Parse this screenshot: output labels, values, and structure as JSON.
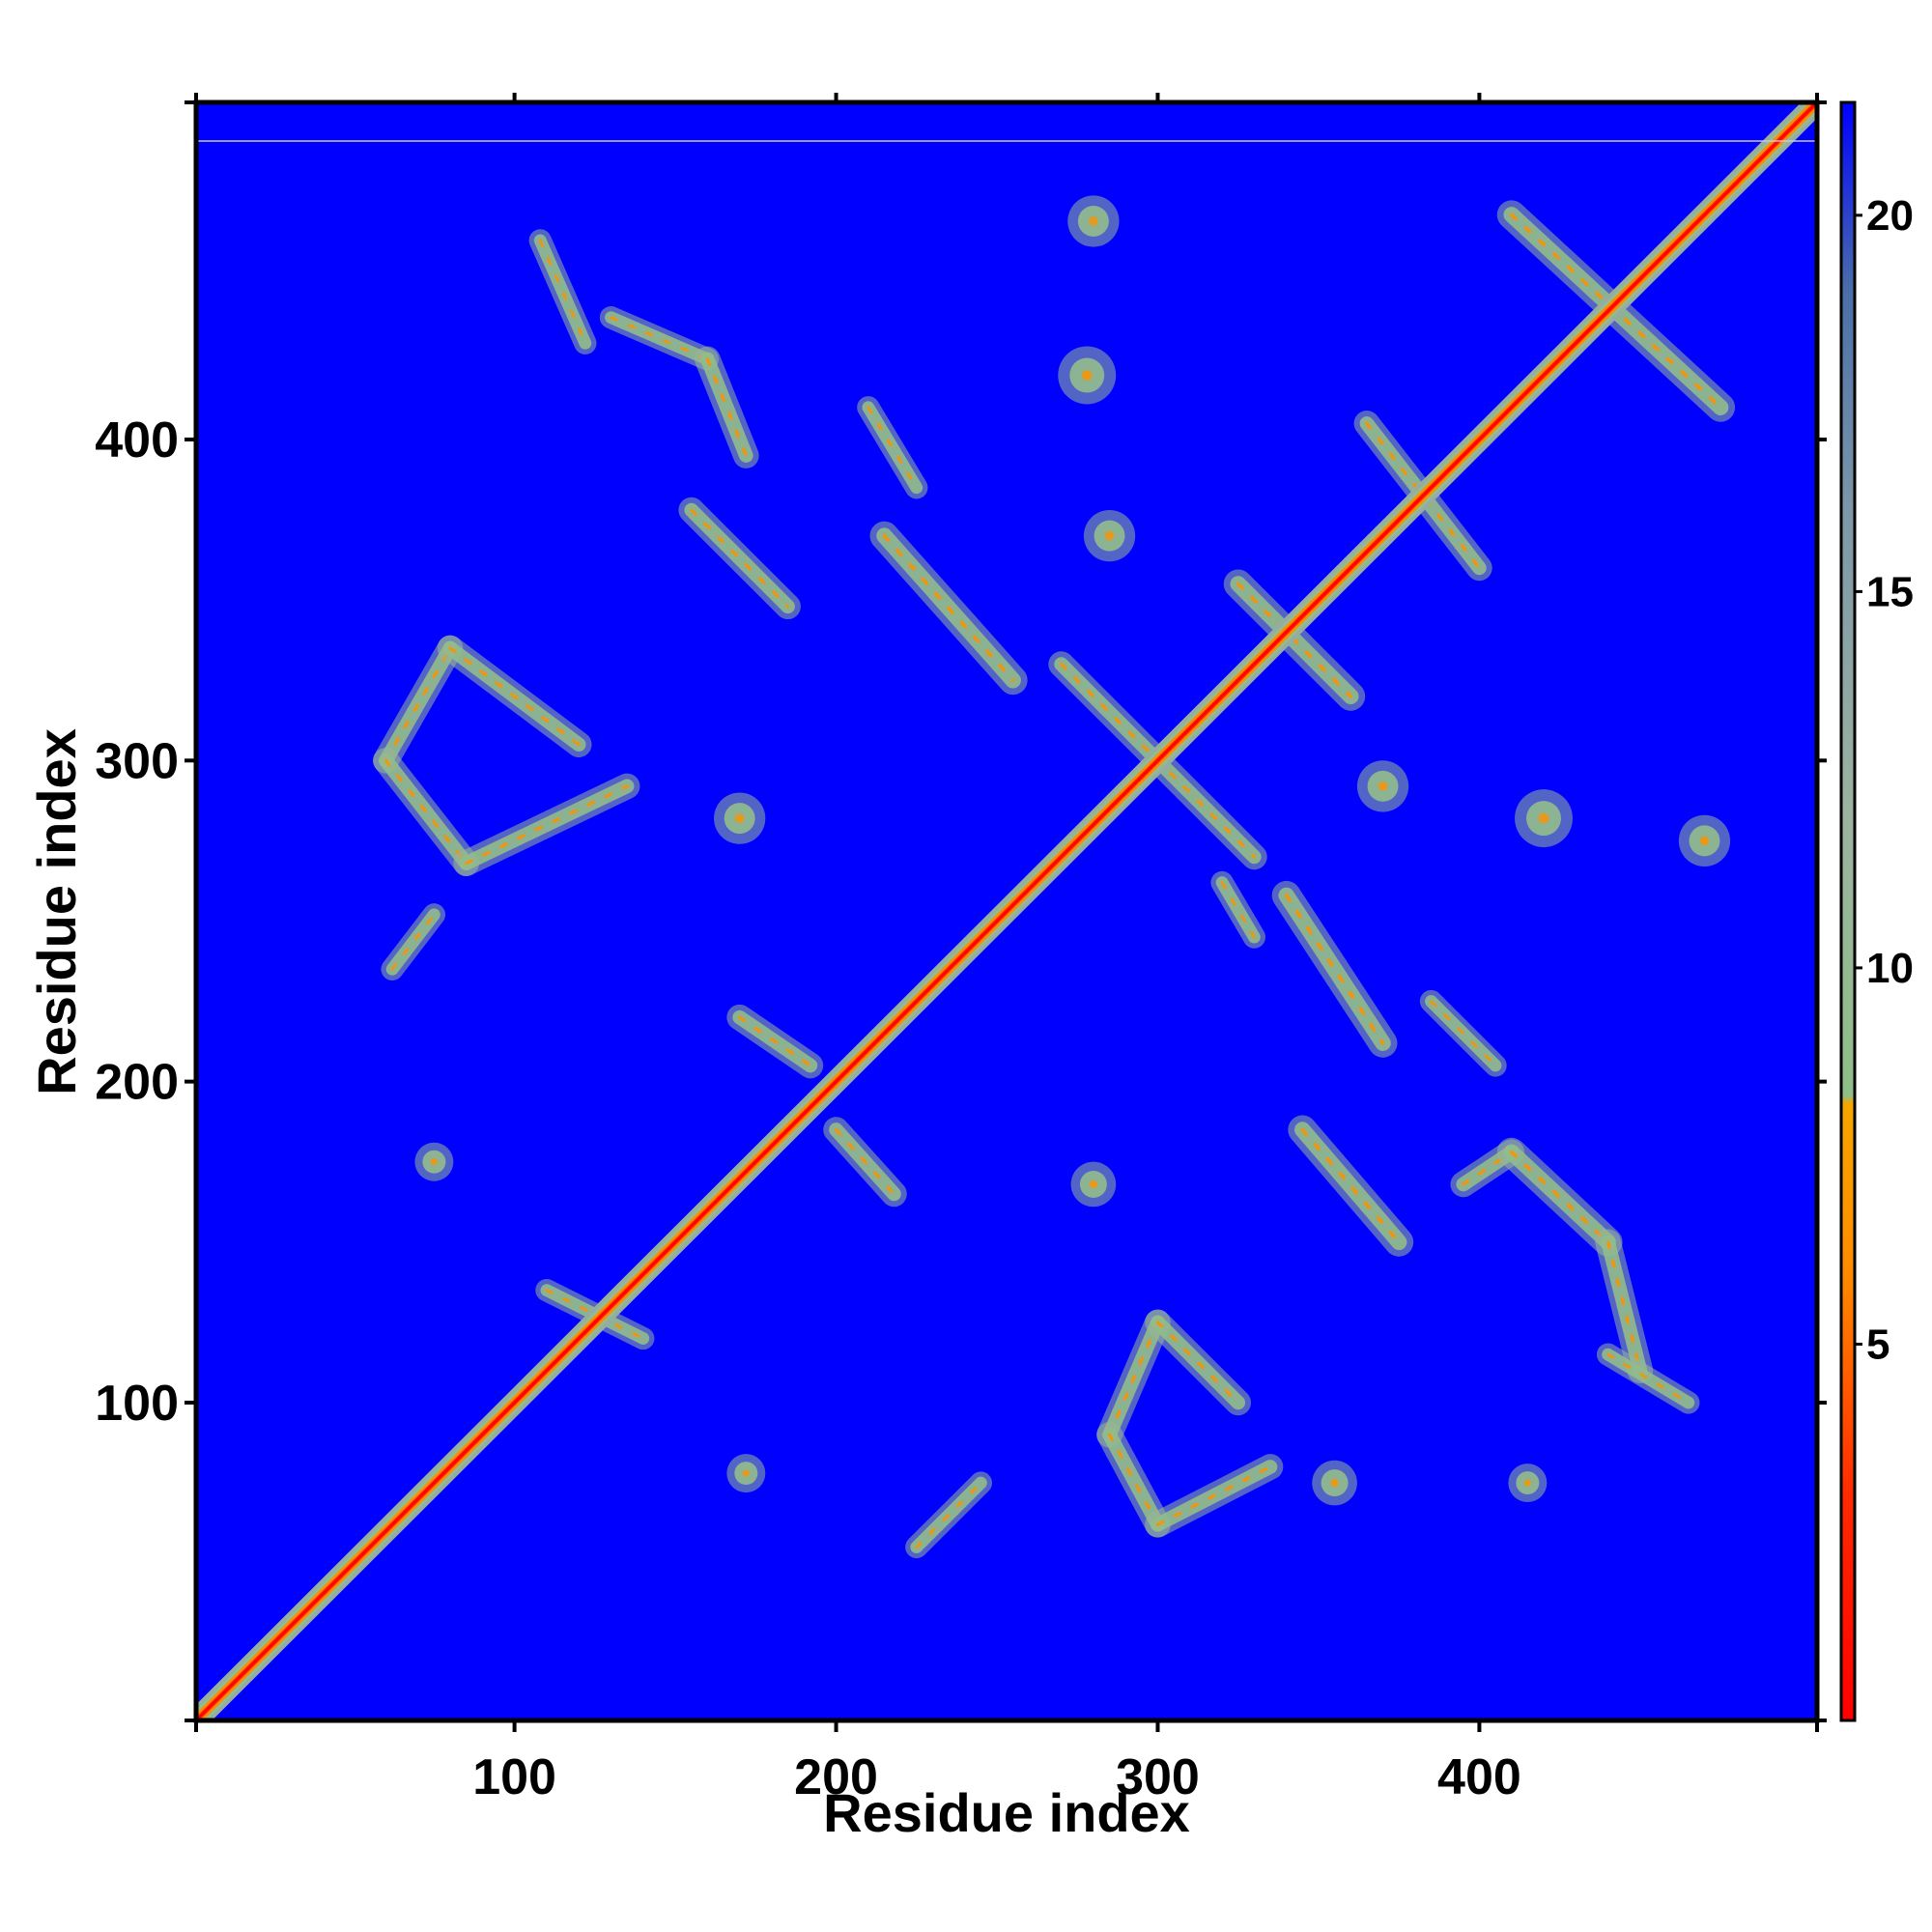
{
  "chart_data": {
    "type": "heatmap",
    "title": "",
    "xlabel": "Residue index",
    "ylabel": "Residue index",
    "xlim": [
      1,
      505
    ],
    "ylim": [
      1,
      505
    ],
    "x_ticks": [
      100,
      200,
      300,
      400
    ],
    "y_ticks": [
      100,
      200,
      300,
      400
    ],
    "colorbar": {
      "range": [
        0,
        21.5
      ],
      "ticks": [
        5,
        10,
        15,
        20
      ],
      "stops": [
        {
          "value": 0,
          "color": "#ff0000"
        },
        {
          "value": 3,
          "color": "#ff2a00"
        },
        {
          "value": 6,
          "color": "#ff8c00"
        },
        {
          "value": 8.2,
          "color": "#f5a500"
        },
        {
          "value": 8.3,
          "color": "#8fbf87"
        },
        {
          "value": 12,
          "color": "#9cb3a0"
        },
        {
          "value": 16,
          "color": "#7e98a8"
        },
        {
          "value": 19,
          "color": "#4a6fa8"
        },
        {
          "value": 21.5,
          "color": "#0000ff"
        }
      ]
    },
    "background_value": 21.5,
    "background_color": "#0000ff",
    "diagonal": {
      "from": 1,
      "to": 505,
      "center_value": 0,
      "width_residues": 7
    },
    "contact_features": [
      {
        "shape": "blob",
        "x": 280,
        "y": 468,
        "size": 8
      },
      {
        "shape": "blob",
        "x": 278,
        "y": 420,
        "size": 9
      },
      {
        "shape": "band",
        "from": [
          108,
          462
        ],
        "to": [
          122,
          430
        ],
        "width": 7
      },
      {
        "shape": "band",
        "from": [
          130,
          438
        ],
        "to": [
          160,
          425
        ],
        "width": 7
      },
      {
        "shape": "band",
        "from": [
          160,
          425
        ],
        "to": [
          172,
          395
        ],
        "width": 8
      },
      {
        "shape": "band",
        "from": [
          210,
          410
        ],
        "to": [
          225,
          385
        ],
        "width": 7
      },
      {
        "shape": "band",
        "from": [
          155,
          378
        ],
        "to": [
          185,
          348
        ],
        "width": 8
      },
      {
        "shape": "band",
        "from": [
          215,
          370
        ],
        "to": [
          255,
          325
        ],
        "width": 9
      },
      {
        "shape": "blob",
        "x": 285,
        "y": 370,
        "size": 8
      },
      {
        "shape": "band",
        "from": [
          410,
          470
        ],
        "to": [
          475,
          410
        ],
        "width": 9
      },
      {
        "shape": "band",
        "from": [
          365,
          405
        ],
        "to": [
          400,
          360
        ],
        "width": 8
      },
      {
        "shape": "band",
        "from": [
          325,
          355
        ],
        "to": [
          360,
          320
        ],
        "width": 9
      },
      {
        "shape": "band",
        "from": [
          270,
          330
        ],
        "to": [
          330,
          270
        ],
        "width": 8
      },
      {
        "shape": "band",
        "from": [
          60,
          300
        ],
        "to": [
          80,
          335
        ],
        "width": 8
      },
      {
        "shape": "band",
        "from": [
          80,
          335
        ],
        "to": [
          120,
          305
        ],
        "width": 8
      },
      {
        "shape": "band",
        "from": [
          60,
          300
        ],
        "to": [
          85,
          268
        ],
        "width": 8
      },
      {
        "shape": "band",
        "from": [
          85,
          268
        ],
        "to": [
          135,
          292
        ],
        "width": 8
      },
      {
        "shape": "blob",
        "x": 170,
        "y": 282,
        "size": 8
      },
      {
        "shape": "blob",
        "x": 370,
        "y": 292,
        "size": 8
      },
      {
        "shape": "blob",
        "x": 420,
        "y": 282,
        "size": 9
      },
      {
        "shape": "blob",
        "x": 470,
        "y": 275,
        "size": 8
      },
      {
        "shape": "band",
        "from": [
          62,
          235
        ],
        "to": [
          75,
          252
        ],
        "width": 7
      },
      {
        "shape": "band",
        "from": [
          170,
          220
        ],
        "to": [
          192,
          205
        ],
        "width": 8
      },
      {
        "shape": "band",
        "from": [
          320,
          262
        ],
        "to": [
          330,
          245
        ],
        "width": 7
      },
      {
        "shape": "band",
        "from": [
          340,
          258
        ],
        "to": [
          370,
          212
        ],
        "width": 9
      },
      {
        "shape": "band",
        "from": [
          385,
          225
        ],
        "to": [
          405,
          205
        ],
        "width": 7
      },
      {
        "shape": "band",
        "from": [
          200,
          185
        ],
        "to": [
          218,
          165
        ],
        "width": 8
      },
      {
        "shape": "blob",
        "x": 75,
        "y": 175,
        "size": 6
      },
      {
        "shape": "blob",
        "x": 280,
        "y": 168,
        "size": 7
      },
      {
        "shape": "band",
        "from": [
          345,
          185
        ],
        "to": [
          375,
          150
        ],
        "width": 9
      },
      {
        "shape": "band",
        "from": [
          395,
          168
        ],
        "to": [
          410,
          178
        ],
        "width": 8
      },
      {
        "shape": "band",
        "from": [
          410,
          178
        ],
        "to": [
          440,
          150
        ],
        "width": 9
      },
      {
        "shape": "band",
        "from": [
          440,
          150
        ],
        "to": [
          450,
          110
        ],
        "width": 8
      },
      {
        "shape": "band",
        "from": [
          440,
          115
        ],
        "to": [
          465,
          100
        ],
        "width": 7
      },
      {
        "shape": "band",
        "from": [
          110,
          135
        ],
        "to": [
          140,
          120
        ],
        "width": 7
      },
      {
        "shape": "band",
        "from": [
          285,
          90
        ],
        "to": [
          300,
          125
        ],
        "width": 8
      },
      {
        "shape": "band",
        "from": [
          300,
          125
        ],
        "to": [
          325,
          100
        ],
        "width": 8
      },
      {
        "shape": "band",
        "from": [
          285,
          90
        ],
        "to": [
          300,
          62
        ],
        "width": 8
      },
      {
        "shape": "band",
        "from": [
          300,
          62
        ],
        "to": [
          335,
          80
        ],
        "width": 8
      },
      {
        "shape": "band",
        "from": [
          225,
          55
        ],
        "to": [
          245,
          75
        ],
        "width": 7
      },
      {
        "shape": "blob",
        "x": 172,
        "y": 78,
        "size": 6
      },
      {
        "shape": "blob",
        "x": 355,
        "y": 75,
        "size": 7
      },
      {
        "shape": "blob",
        "x": 415,
        "y": 75,
        "size": 6
      }
    ]
  }
}
